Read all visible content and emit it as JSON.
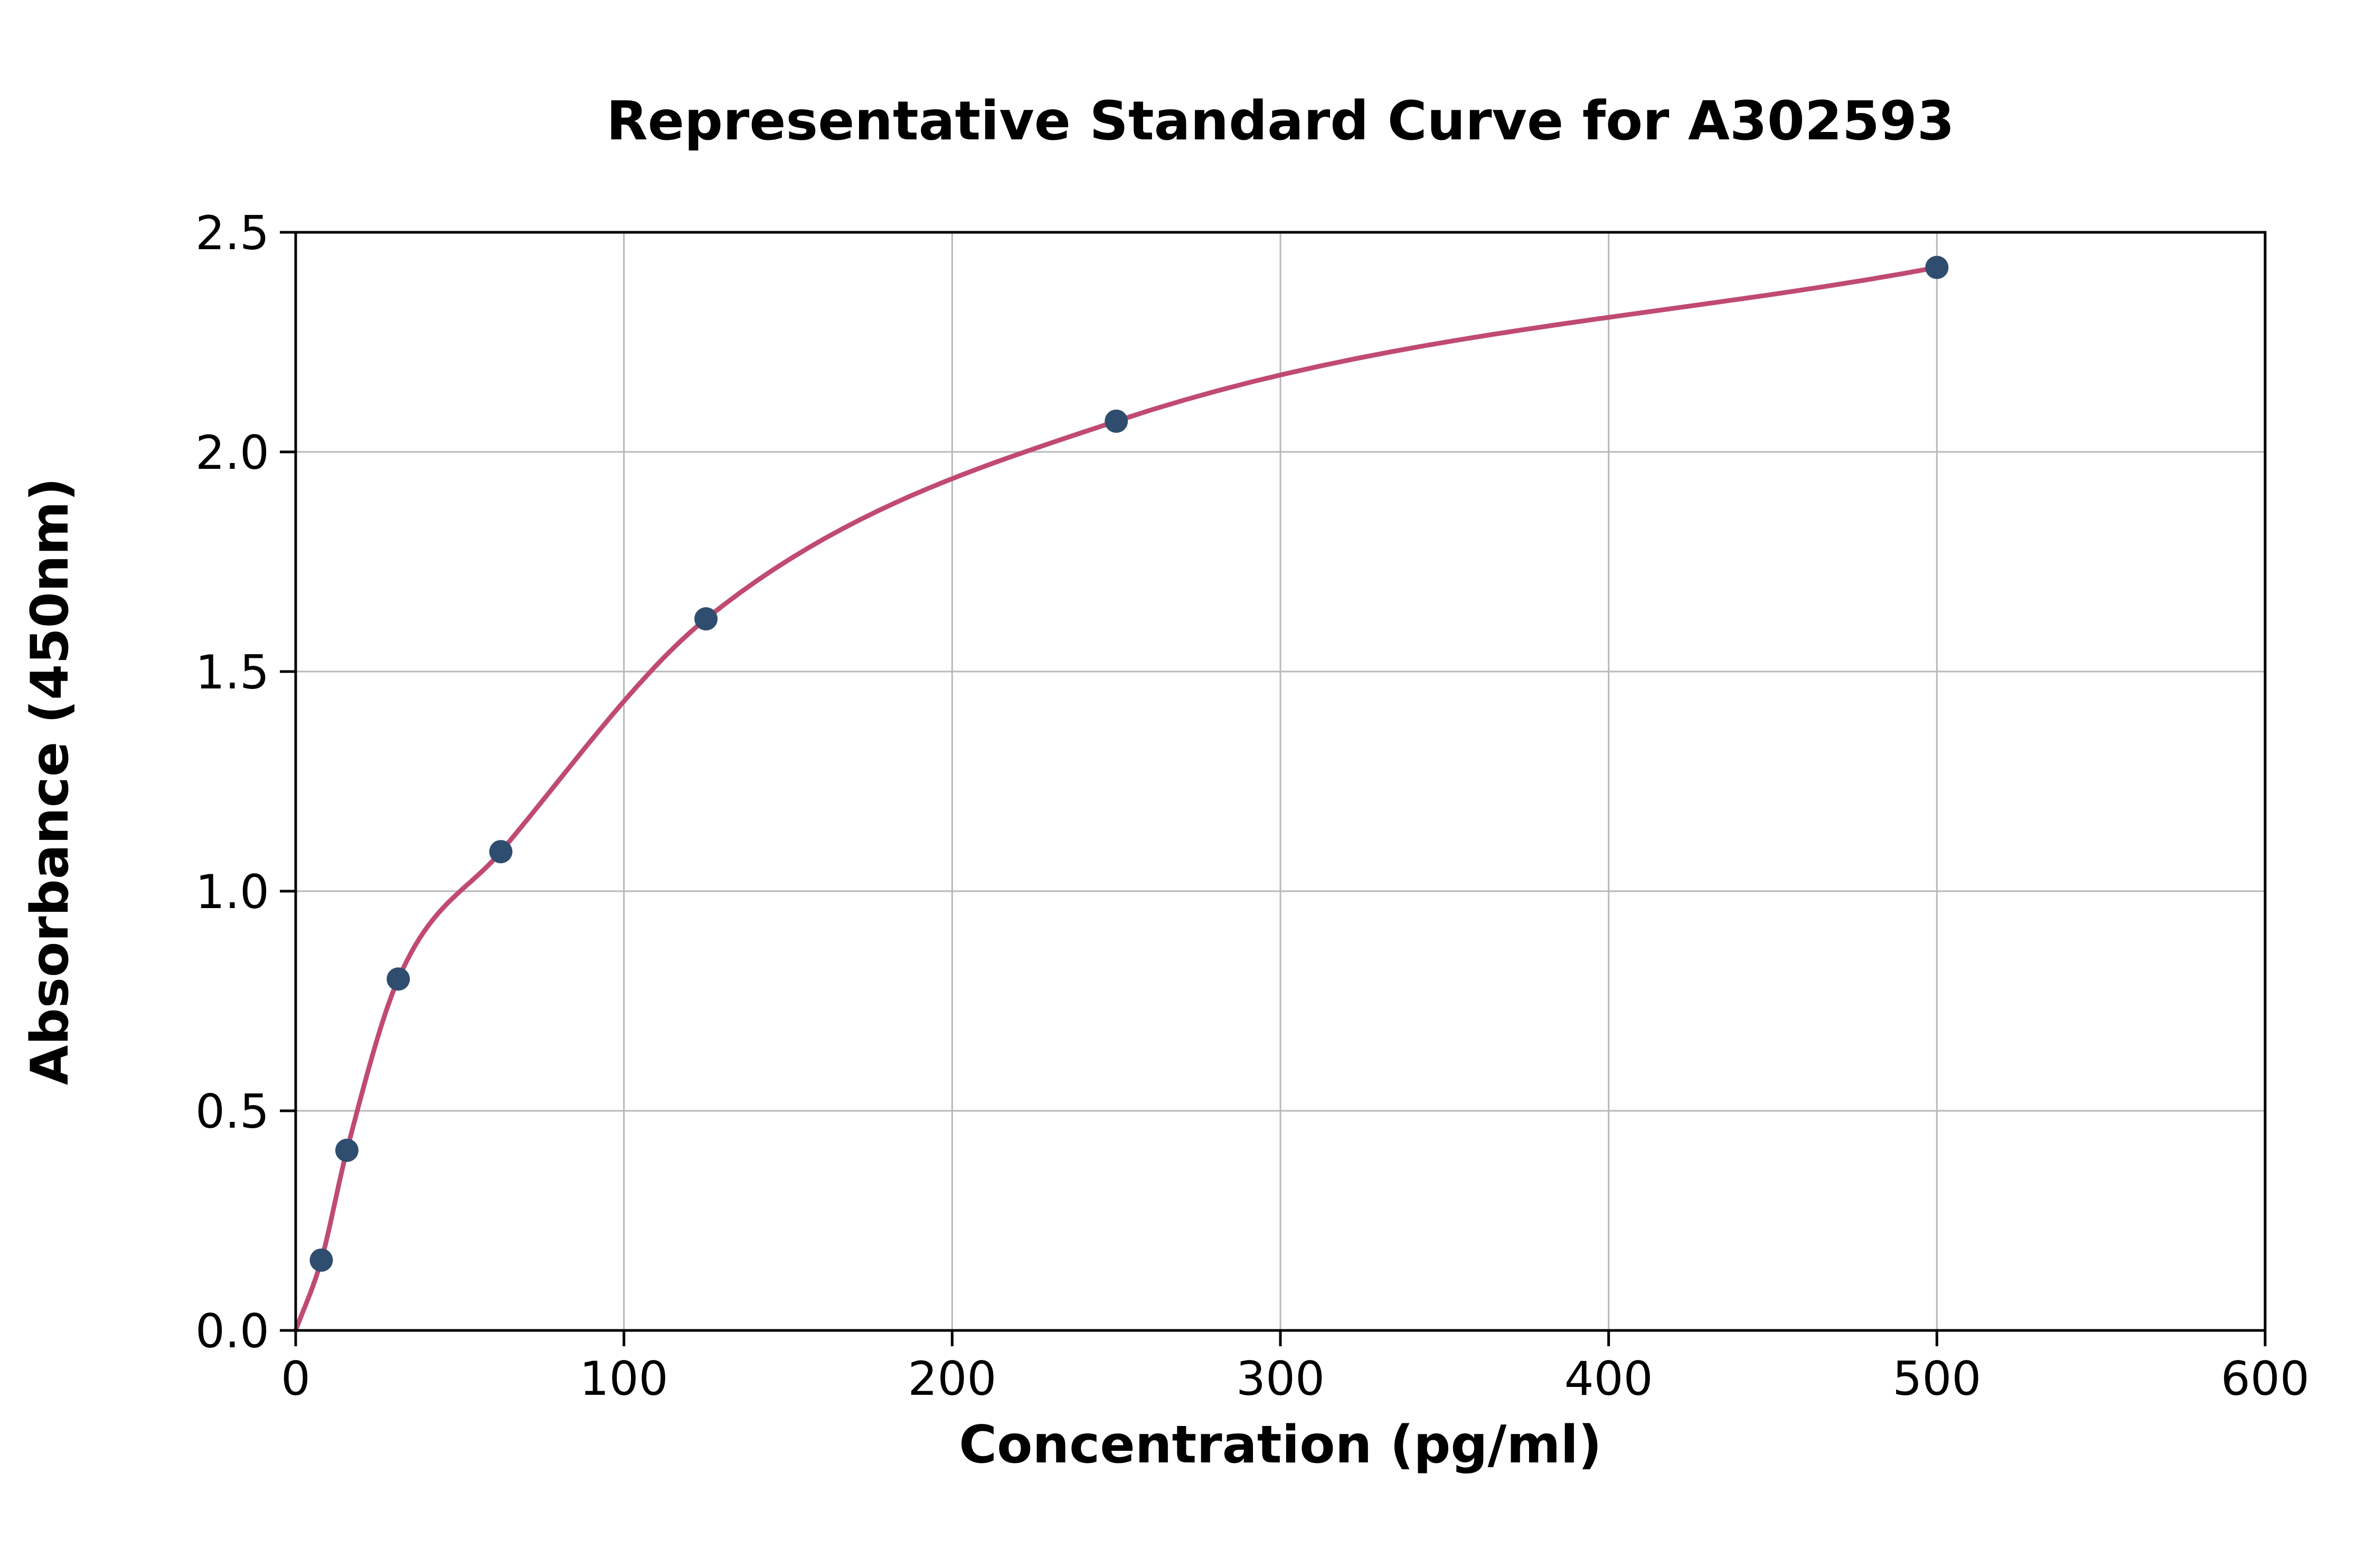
{
  "chart_data": {
    "type": "scatter",
    "title": "Representative Standard Curve for A302593",
    "xlabel": "Concentration (pg/ml)",
    "ylabel": "Absorbance (450nm)",
    "x": [
      7.8,
      15.6,
      31.25,
      62.5,
      125,
      250,
      500
    ],
    "y": [
      0.16,
      0.41,
      0.8,
      1.09,
      1.62,
      2.07,
      2.42
    ],
    "fit_curve_start": [
      0,
      0
    ],
    "xlim": [
      0,
      600
    ],
    "ylim": [
      0,
      2.5
    ],
    "xticks": [
      0,
      100,
      200,
      300,
      400,
      500,
      600
    ],
    "ytick_labels": [
      "0.0",
      "0.5",
      "1.0",
      "1.5",
      "2.0",
      "2.5"
    ],
    "grid": true,
    "legend": "none",
    "colors": {
      "point": "#2f4d6e",
      "curve": "#c04a70",
      "grid": "#b8b8b8",
      "axis": "#000000",
      "background": "#ffffff"
    }
  }
}
